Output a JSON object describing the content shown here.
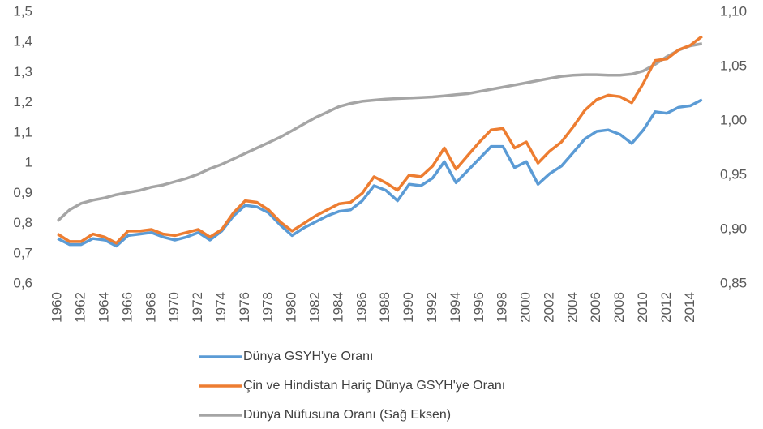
{
  "chart_data": {
    "type": "line",
    "categories": [
      "1960",
      null,
      "1962",
      null,
      "1964",
      null,
      "1966",
      null,
      "1968",
      null,
      "1970",
      null,
      "1972",
      null,
      "1974",
      null,
      "1976",
      null,
      "1978",
      null,
      "1980",
      null,
      "1982",
      null,
      "1984",
      null,
      "1986",
      null,
      "1988",
      null,
      "1990",
      null,
      "1992",
      null,
      "1994",
      null,
      "1996",
      null,
      "1998",
      null,
      "2000",
      null,
      "2002",
      null,
      "2004",
      null,
      "2006",
      null,
      "2008",
      null,
      "2010",
      null,
      "2012",
      null,
      "2014",
      null
    ],
    "series": [
      {
        "name": "Dünya GSYH'ye Oranı",
        "color": "#5b9bd5",
        "values": [
          0.75,
          0.73,
          0.73,
          0.75,
          0.745,
          0.725,
          0.76,
          0.765,
          0.77,
          0.755,
          0.745,
          0.755,
          0.77,
          0.745,
          0.775,
          0.825,
          0.86,
          0.855,
          0.835,
          0.795,
          0.76,
          0.785,
          0.805,
          0.825,
          0.84,
          0.845,
          0.875,
          0.925,
          0.91,
          0.875,
          0.93,
          0.925,
          0.95,
          1.005,
          0.935,
          0.975,
          1.015,
          1.055,
          1.055,
          0.985,
          1.005,
          0.93,
          0.965,
          0.99,
          1.035,
          1.08,
          1.105,
          1.11,
          1.095,
          1.065,
          1.11,
          1.17,
          1.165,
          1.185,
          1.19,
          1.21
        ]
      },
      {
        "name": "Çin ve Hindistan Hariç Dünya GSYH'ye Oranı",
        "color": "#ed7d31",
        "values": [
          0.765,
          0.74,
          0.74,
          0.765,
          0.755,
          0.735,
          0.775,
          0.775,
          0.78,
          0.765,
          0.76,
          0.77,
          0.78,
          0.755,
          0.78,
          0.835,
          0.875,
          0.87,
          0.845,
          0.805,
          0.775,
          0.8,
          0.825,
          0.845,
          0.865,
          0.87,
          0.9,
          0.955,
          0.935,
          0.91,
          0.96,
          0.955,
          0.99,
          1.05,
          0.98,
          1.025,
          1.07,
          1.11,
          1.115,
          1.05,
          1.07,
          1.0,
          1.04,
          1.07,
          1.12,
          1.175,
          1.21,
          1.225,
          1.22,
          1.2,
          1.265,
          1.34,
          1.345,
          1.375,
          1.39,
          1.42
        ]
      },
      {
        "name": "Dünya Nüfusuna Oranı (Sağ Eksen)",
        "color": "#a5a5a5",
        "axis": "y2",
        "values": [
          0.908,
          0.918,
          0.924,
          0.927,
          0.929,
          0.932,
          0.934,
          0.936,
          0.939,
          0.941,
          0.944,
          0.947,
          0.951,
          0.956,
          0.96,
          0.965,
          0.97,
          0.975,
          0.98,
          0.985,
          0.991,
          0.997,
          1.003,
          1.008,
          1.013,
          1.016,
          1.018,
          1.019,
          1.02,
          1.0205,
          1.021,
          1.0215,
          1.022,
          1.023,
          1.024,
          1.025,
          1.027,
          1.029,
          1.031,
          1.033,
          1.035,
          1.037,
          1.039,
          1.041,
          1.042,
          1.0425,
          1.0425,
          1.042,
          1.042,
          1.043,
          1.046,
          1.052,
          1.059,
          1.065,
          1.069,
          1.071
        ]
      }
    ],
    "ylim": [
      0.6,
      1.5
    ],
    "yticks": [
      {
        "value": 0.6,
        "label": "0,6"
      },
      {
        "value": 0.7,
        "label": "0,7"
      },
      {
        "value": 0.8,
        "label": "0,8"
      },
      {
        "value": 0.9,
        "label": "0,9"
      },
      1,
      {
        "value": 1.1,
        "label": "1,1"
      },
      {
        "value": 1.2,
        "label": "1,2"
      },
      {
        "value": 1.3,
        "label": "1,3"
      },
      {
        "value": 1.4,
        "label": "1,4"
      },
      {
        "value": 1.5,
        "label": "1,5"
      }
    ],
    "y2lim": [
      0.85,
      1.1
    ],
    "y2ticks": [
      {
        "value": 0.85,
        "label": "0,85"
      },
      {
        "value": 0.9,
        "label": "0,90"
      },
      {
        "value": 0.95,
        "label": "0,95"
      },
      {
        "value": 1.0,
        "label": "1,00"
      },
      {
        "value": 1.05,
        "label": "1,05"
      },
      {
        "value": 1.1,
        "label": "1,10"
      }
    ],
    "legend": "bottom"
  }
}
